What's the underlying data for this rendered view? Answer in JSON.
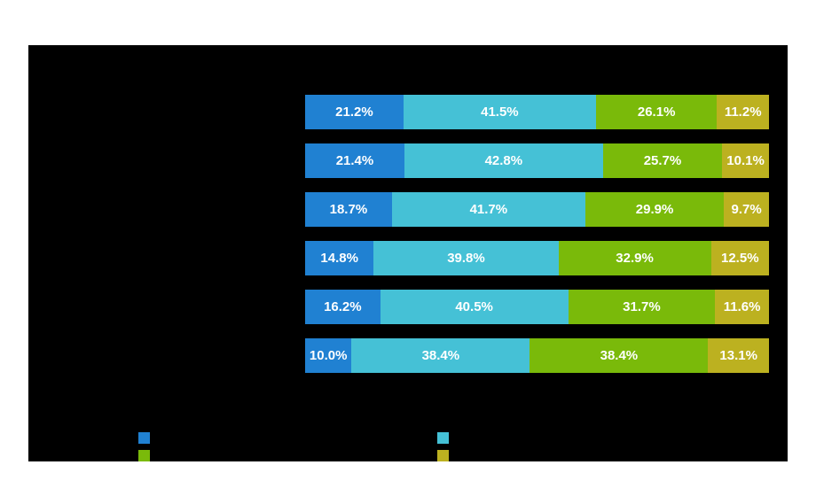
{
  "colors": {
    "page_background": "#ffffff",
    "panel_background": "#000000",
    "value_label_text": "#ffffff"
  },
  "chart_data": {
    "type": "bar",
    "orientation": "horizontal",
    "stacked": true,
    "unit": "%",
    "xlim": [
      0,
      100
    ],
    "grid": false,
    "legend_position": "bottom",
    "series": [
      {
        "name": "blue",
        "color": "#2081D2",
        "values": [
          21.2,
          21.4,
          18.7,
          14.8,
          16.2,
          10.0
        ]
      },
      {
        "name": "cyan",
        "color": "#45C1D6",
        "values": [
          41.5,
          42.8,
          41.7,
          39.8,
          40.5,
          38.4
        ]
      },
      {
        "name": "green",
        "color": "#7ABA0A",
        "values": [
          26.1,
          25.7,
          29.9,
          32.9,
          31.7,
          38.4
        ]
      },
      {
        "name": "olive",
        "color": "#BCB120",
        "values": [
          11.2,
          10.1,
          9.7,
          12.5,
          11.6,
          13.1
        ]
      }
    ],
    "value_labels": [
      [
        "21.2%",
        "41.5%",
        "26.1%",
        "11.2%"
      ],
      [
        "21.4%",
        "42.8%",
        "25.7%",
        "10.1%"
      ],
      [
        "18.7%",
        "41.7%",
        "29.9%",
        "9.7%"
      ],
      [
        "14.8%",
        "39.8%",
        "32.9%",
        "12.5%"
      ],
      [
        "16.2%",
        "40.5%",
        "31.7%",
        "11.6%"
      ],
      [
        "10.0%",
        "38.4%",
        "38.4%",
        "13.1%"
      ]
    ],
    "legend_swatches": [
      {
        "name": "blue",
        "color": "#2081D2",
        "column": "left",
        "row": "top"
      },
      {
        "name": "green",
        "color": "#7ABA0A",
        "column": "left",
        "row": "bottom"
      },
      {
        "name": "cyan",
        "color": "#45C1D6",
        "column": "right",
        "row": "top"
      },
      {
        "name": "olive",
        "color": "#BCB120",
        "column": "right",
        "row": "bottom"
      }
    ]
  }
}
